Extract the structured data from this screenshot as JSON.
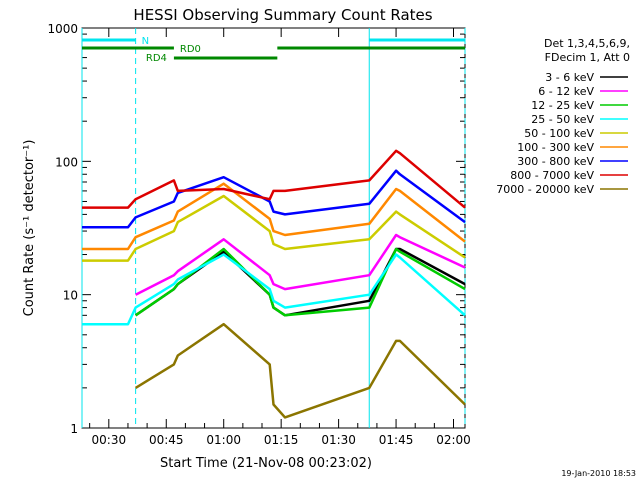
{
  "chart_data": {
    "type": "line",
    "title": "HESSI Observing Summary Count Rates",
    "xlabel": "Start Time (21-Nov-08 00:23:02)",
    "ylabel": "Count Rate (s⁻¹ detector⁻¹)",
    "y_scale": "log",
    "ylim": [
      1,
      1000
    ],
    "xlim_minutes_after_0023": [
      0,
      100
    ],
    "x_ticks": [
      "00:30",
      "00:45",
      "01:00",
      "01:15",
      "01:30",
      "01:45",
      "02:00"
    ],
    "y_ticks": [
      "1",
      "10",
      "100",
      "1000"
    ],
    "footer_date": "19-Jan-2010 18:53",
    "legend": {
      "header_lines": [
        "Det 1,3,4,5,6,9,",
        "FDecim 1, Att 0"
      ],
      "placement": "top-right outside"
    },
    "annotations": {
      "N_label": "N",
      "RD0_label": "RD0",
      "RD4_label": "RD4"
    },
    "times": [
      "00:23",
      "00:35",
      "00:37",
      "00:47",
      "00:48",
      "01:00",
      "01:12",
      "01:13",
      "01:16",
      "01:38",
      "01:45",
      "01:46",
      "02:03"
    ],
    "series": [
      {
        "name": "3 - 6 keV",
        "color": "#000000",
        "values": [
          null,
          null,
          7,
          11,
          12,
          21,
          10,
          8,
          7,
          9,
          22,
          22,
          12
        ]
      },
      {
        "name": "6 - 12 keV",
        "color": "#ff00ff",
        "values": [
          null,
          null,
          10,
          14,
          15,
          26,
          14,
          12,
          11,
          14,
          28,
          27,
          16
        ]
      },
      {
        "name": "12 - 25 keV",
        "color": "#00cc00",
        "values": [
          null,
          null,
          7,
          11,
          12,
          22,
          10,
          8,
          7,
          8,
          22,
          21,
          11
        ]
      },
      {
        "name": "25 - 50 keV",
        "color": "#00ffff",
        "values": [
          6,
          6,
          8,
          12,
          13,
          20,
          11,
          9,
          8,
          10,
          20,
          19,
          7
        ]
      },
      {
        "name": "50 - 100 keV",
        "color": "#cccc00",
        "values": [
          18,
          18,
          22,
          30,
          35,
          55,
          30,
          24,
          22,
          26,
          42,
          40,
          19
        ]
      },
      {
        "name": "100 - 300 keV",
        "color": "#ff8800",
        "values": [
          22,
          22,
          27,
          36,
          42,
          68,
          37,
          30,
          28,
          34,
          62,
          60,
          25
        ]
      },
      {
        "name": "300 - 800 keV",
        "color": "#0000ff",
        "values": [
          32,
          32,
          38,
          50,
          58,
          76,
          50,
          42,
          40,
          48,
          85,
          80,
          35
        ]
      },
      {
        "name": "800 - 7000 keV",
        "color": "#dd0000",
        "values": [
          45,
          45,
          52,
          72,
          60,
          62,
          52,
          60,
          60,
          72,
          120,
          115,
          45
        ]
      },
      {
        "name": "7000 - 20000 keV",
        "color": "#8b7500",
        "values": [
          null,
          null,
          2,
          3,
          3.5,
          6,
          3,
          1.5,
          1.2,
          2,
          4.5,
          4.5,
          1.5
        ]
      }
    ]
  }
}
